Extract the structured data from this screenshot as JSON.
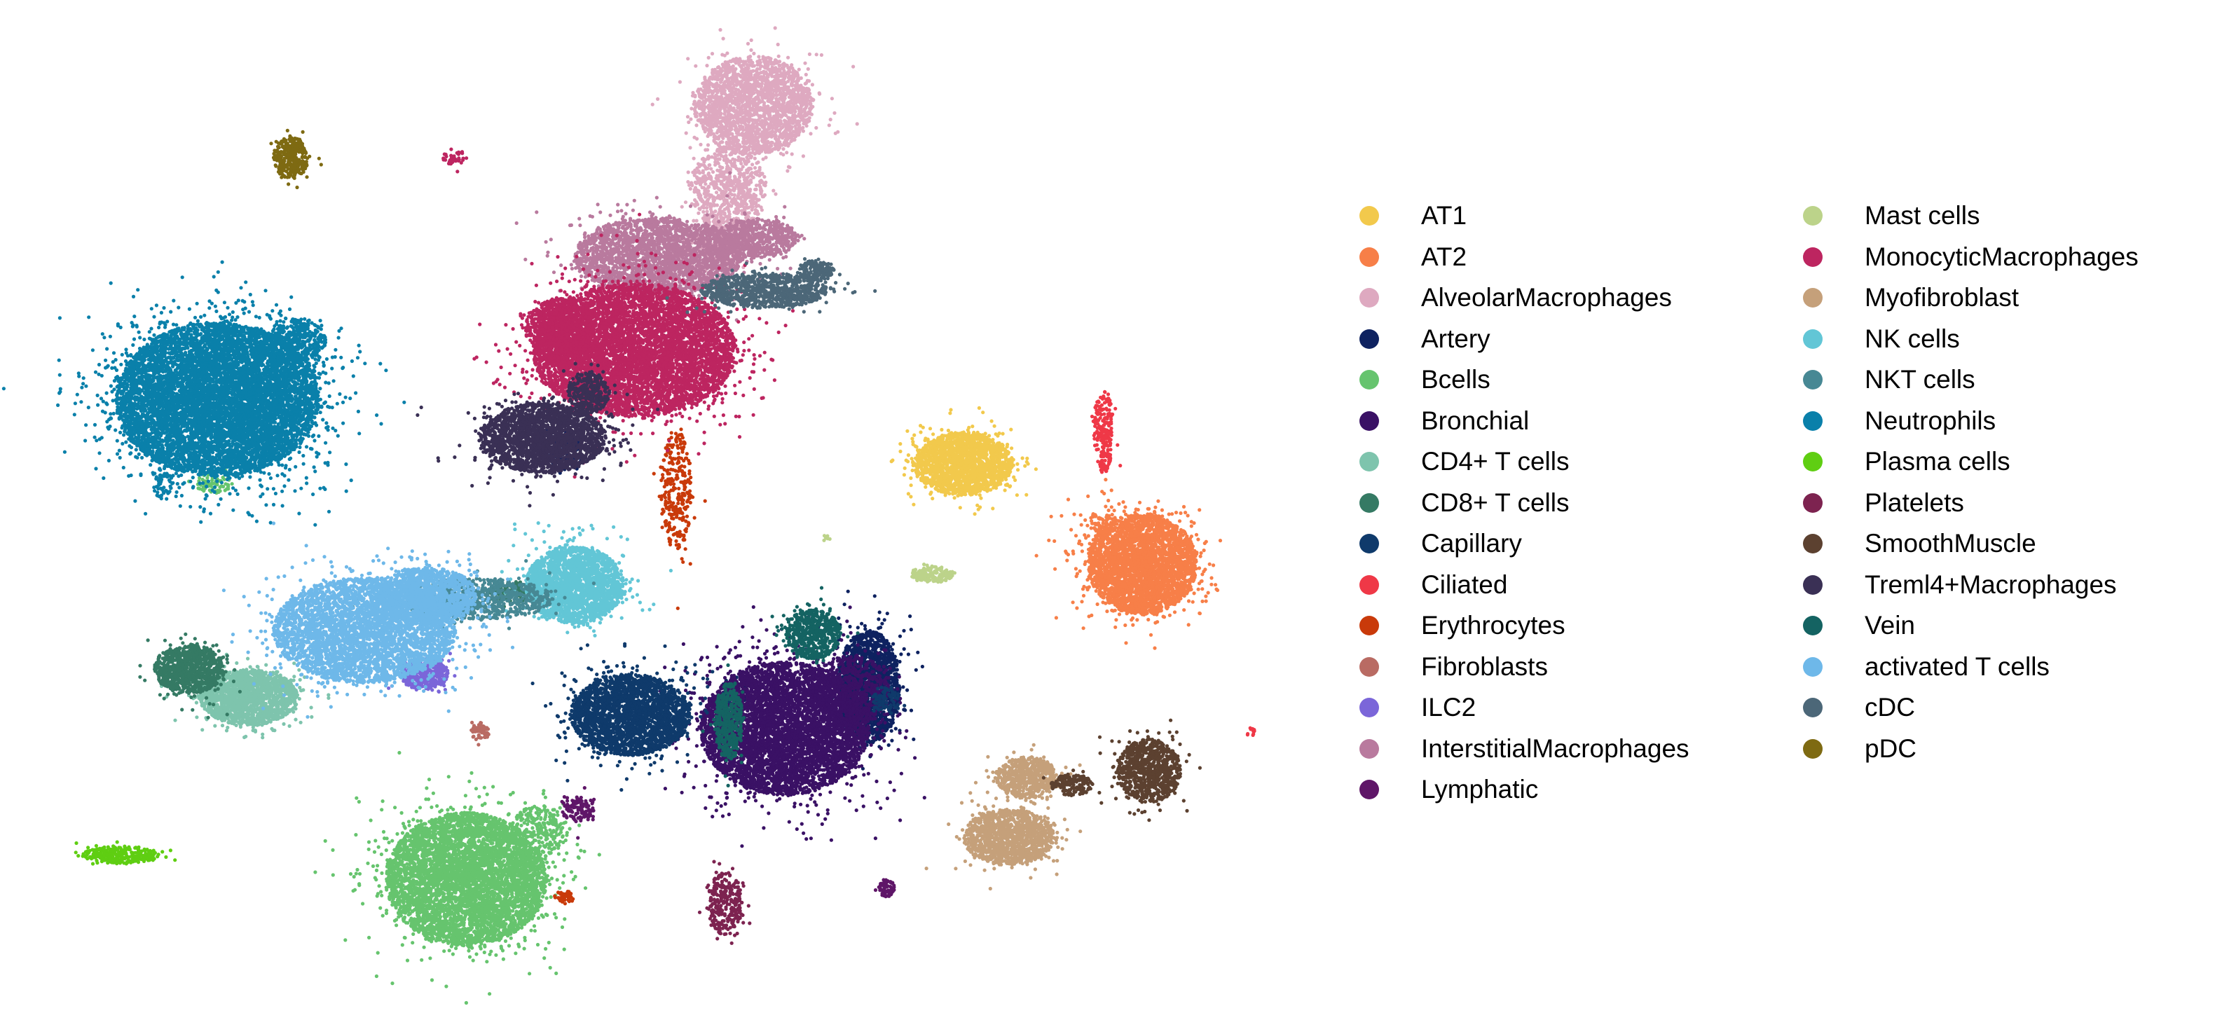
{
  "chart_data": {
    "type": "scatter",
    "title": "",
    "xlabel": "",
    "ylabel": "",
    "axes_visible": false,
    "grid": false,
    "legend_position": "right",
    "legend_columns": 2,
    "series": [
      {
        "name": "AT1",
        "color": "#f2c94c",
        "clusters": [
          [
            1375,
            662,
            70,
            45,
            1900
          ]
        ]
      },
      {
        "name": "AT2",
        "color": "#f77f48",
        "clusters": [
          [
            1630,
            805,
            78,
            72,
            3200
          ],
          [
            1575,
            745,
            18,
            16,
            60
          ]
        ]
      },
      {
        "name": "AlveolarMacrophages",
        "color": "#dea9c0",
        "clusters": [
          [
            1075,
            150,
            85,
            70,
            2200
          ],
          [
            1040,
            270,
            55,
            60,
            700
          ],
          [
            1010,
            360,
            50,
            35,
            250
          ]
        ]
      },
      {
        "name": "Artery",
        "color": "#0e2260",
        "clusters": [
          [
            1240,
            980,
            45,
            80,
            1600
          ],
          [
            800,
            640,
            30,
            25,
            150
          ],
          [
            1050,
            985,
            20,
            20,
            60
          ]
        ]
      },
      {
        "name": "Bcells",
        "color": "#66c46e",
        "clusters": [
          [
            665,
            1255,
            115,
            95,
            5200
          ],
          [
            770,
            1185,
            40,
            35,
            250
          ],
          [
            305,
            690,
            25,
            15,
            80
          ]
        ]
      },
      {
        "name": "Bronchial",
        "color": "#3a1165",
        "clusters": [
          [
            1120,
            1040,
            120,
            95,
            5500
          ],
          [
            1215,
            985,
            55,
            50,
            600
          ]
        ]
      },
      {
        "name": "CD4+ T cells",
        "color": "#7ec4ad",
        "clusters": [
          [
            355,
            995,
            70,
            40,
            1700
          ]
        ]
      },
      {
        "name": "CD8+ T cells",
        "color": "#357a64",
        "clusters": [
          [
            270,
            955,
            50,
            35,
            900
          ],
          [
            735,
            845,
            35,
            15,
            120
          ]
        ]
      },
      {
        "name": "Capillary",
        "color": "#0f3a6b",
        "clusters": [
          [
            900,
            1020,
            85,
            58,
            2600
          ],
          [
            1265,
            1000,
            20,
            20,
            80
          ]
        ]
      },
      {
        "name": "Ciliated",
        "color": "#ef3847",
        "clusters": [
          [
            1575,
            615,
            14,
            60,
            220
          ],
          [
            1785,
            1045,
            6,
            6,
            12
          ]
        ]
      },
      {
        "name": "Erythrocytes",
        "color": "#c93a0a",
        "clusters": [
          [
            965,
            700,
            22,
            85,
            300
          ],
          [
            805,
            1280,
            15,
            8,
            50
          ]
        ]
      },
      {
        "name": "Fibroblasts",
        "color": "#b96b63",
        "clusters": [
          [
            685,
            1045,
            13,
            12,
            60
          ]
        ]
      },
      {
        "name": "ILC2",
        "color": "#7b66d9",
        "clusters": [
          [
            605,
            962,
            35,
            22,
            450
          ]
        ]
      },
      {
        "name": "InterstitialMacrophages",
        "color": "#b97a9e",
        "clusters": [
          [
            940,
            365,
            120,
            55,
            2500
          ],
          [
            1080,
            340,
            60,
            28,
            600
          ]
        ]
      },
      {
        "name": "Lymphatic",
        "color": "#5f1668",
        "clusters": [
          [
            1265,
            1268,
            12,
            12,
            70
          ],
          [
            825,
            1155,
            25,
            18,
            120
          ]
        ]
      },
      {
        "name": "Mast cells",
        "color": "#bcd38a",
        "clusters": [
          [
            1330,
            820,
            30,
            12,
            160
          ],
          [
            1178,
            768,
            5,
            4,
            10
          ]
        ]
      },
      {
        "name": "MonocyticMacrophages",
        "color": "#bd2560",
        "clusters": [
          [
            905,
            500,
            145,
            95,
            6500
          ],
          [
            800,
            470,
            50,
            45,
            800
          ],
          [
            650,
            225,
            18,
            10,
            40
          ]
        ]
      },
      {
        "name": "Myofibroblast",
        "color": "#c5a07a",
        "clusters": [
          [
            1440,
            1195,
            65,
            40,
            1300
          ],
          [
            1465,
            1110,
            45,
            30,
            600
          ]
        ]
      },
      {
        "name": "NK cells",
        "color": "#62c6d6",
        "clusters": [
          [
            820,
            835,
            70,
            55,
            2200
          ]
        ]
      },
      {
        "name": "NKT cells",
        "color": "#478894",
        "clusters": [
          [
            680,
            855,
            110,
            30,
            800
          ]
        ]
      },
      {
        "name": "Neutrophils",
        "color": "#0a80aa",
        "clusters": [
          [
            310,
            570,
            145,
            110,
            8500
          ],
          [
            425,
            485,
            40,
            30,
            400
          ],
          [
            232,
            690,
            15,
            22,
            60
          ]
        ]
      },
      {
        "name": "Plasma cells",
        "color": "#5fce12",
        "clusters": [
          [
            172,
            1220,
            55,
            12,
            300
          ]
        ]
      },
      {
        "name": "Platelets",
        "color": "#7d2350",
        "clusters": [
          [
            1035,
            1290,
            25,
            45,
            280
          ]
        ]
      },
      {
        "name": "SmoothMuscle",
        "color": "#5c4130",
        "clusters": [
          [
            1640,
            1100,
            45,
            45,
            900
          ],
          [
            1530,
            1120,
            30,
            15,
            150
          ]
        ]
      },
      {
        "name": "Treml4+Macrophages",
        "color": "#3a3055",
        "clusters": [
          [
            775,
            625,
            90,
            50,
            2200
          ],
          [
            840,
            560,
            30,
            30,
            300
          ]
        ]
      },
      {
        "name": "Vein",
        "color": "#146362",
        "clusters": [
          [
            1160,
            905,
            40,
            35,
            600
          ],
          [
            1040,
            1030,
            20,
            55,
            400
          ]
        ]
      },
      {
        "name": "activated T cells",
        "color": "#6eb8e9",
        "clusters": [
          [
            520,
            900,
            130,
            75,
            4000
          ],
          [
            610,
            850,
            70,
            40,
            1200
          ]
        ]
      },
      {
        "name": "cDC",
        "color": "#4c6778",
        "clusters": [
          [
            1090,
            415,
            90,
            25,
            900
          ],
          [
            1165,
            385,
            25,
            15,
            150
          ]
        ]
      },
      {
        "name": "pDC",
        "color": "#7e6a12",
        "clusters": [
          [
            415,
            225,
            25,
            30,
            320
          ]
        ]
      }
    ]
  }
}
